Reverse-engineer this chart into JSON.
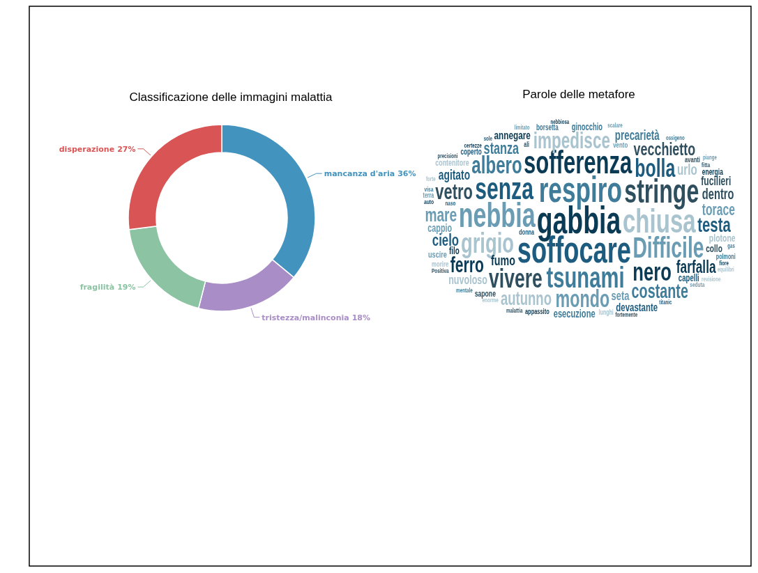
{
  "chart_data": [
    {
      "type": "donut",
      "title": "Classificazione delle immagini malattia",
      "categories": [
        "mancanza d'aria",
        "tristezza/malinconia",
        "fragilità",
        "disperazione"
      ],
      "values": [
        36,
        18,
        19,
        27
      ],
      "colors": [
        "#4393bf",
        "#a98dc6",
        "#8cc3a3",
        "#d95555"
      ],
      "value_labels": [
        "36%",
        "18%",
        "19%",
        "27%"
      ]
    },
    {
      "type": "other",
      "title": "Parole delle metafore",
      "annotations": [
        "gabbia",
        "soffocare",
        "respiro",
        "nebbia",
        "chiusa",
        "stringe",
        "sofferenza",
        "senza",
        "tsunami",
        "Difficile",
        "grigio",
        "vivere",
        "nero",
        "bolla",
        "albero",
        "mondo",
        "impedisce",
        "vetro",
        "ferro",
        "testa",
        "costante",
        "mare",
        "autunno",
        "vecchietto",
        "farfalla",
        "cielo",
        "stanza",
        "torace",
        "urlo",
        "dentro",
        "fumo",
        "agitato",
        "precarietà",
        "seta",
        "nuvoloso",
        "fucilieri",
        "annegare",
        "devastante",
        "esecuzione",
        "cappio",
        "plotone",
        "collo",
        "filo",
        "capelli",
        "ginocchio",
        "uscire",
        "contenitore",
        "sapone",
        "energia",
        "coperto",
        "borsetta",
        "vento",
        "morire",
        "avanti",
        "appassito",
        "donna",
        "polmoni",
        "terra",
        "lunghi",
        "ali",
        "auto",
        "fitta",
        "visa",
        "seduta",
        "enorme",
        "Positiva",
        "certezze",
        "naso",
        "mentale",
        "scalare",
        "revisione",
        "malattia",
        "fiore",
        "titanic",
        "gas",
        "limitato",
        "forte",
        "fortemente",
        "nebbiosa",
        "sole",
        "ossigeno",
        "piange",
        "equilibri",
        "precisioni"
      ]
    }
  ]
}
